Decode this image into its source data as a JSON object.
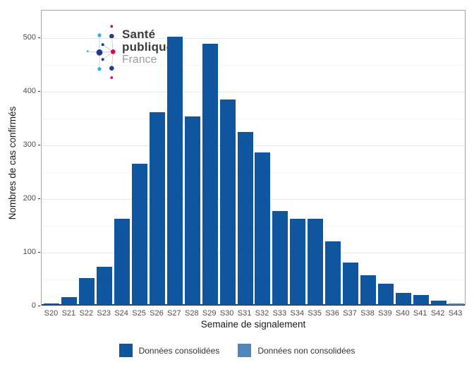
{
  "logo": {
    "line1": "Santé",
    "line2": "publique",
    "line3": "France",
    "colors": {
      "navy": "#1F3D8C",
      "cyan": "#2FB3E8",
      "pink": "#E0004D",
      "link": "#c3cbd8"
    }
  },
  "chart_data": {
    "type": "bar",
    "title": "",
    "xlabel": "Semaine de signalement",
    "ylabel": "Nombres de cas confirmés",
    "categories": [
      "S20",
      "S21",
      "S22",
      "S23",
      "S24",
      "S25",
      "S26",
      "S27",
      "S28",
      "S29",
      "S30",
      "S31",
      "S32",
      "S33",
      "S34",
      "S35",
      "S36",
      "S37",
      "S38",
      "S39",
      "S40",
      "S41",
      "S42",
      "S43"
    ],
    "series": [
      {
        "name": "Données consolidées",
        "color": "#10569F",
        "values": [
          3,
          15,
          50,
          71,
          161,
          264,
          360,
          501,
          352,
          488,
          384,
          323,
          285,
          175,
          161,
          161,
          118,
          79,
          55,
          39,
          22,
          18,
          8,
          0
        ]
      },
      {
        "name": "Données non consolidées",
        "color": "#4E86BB",
        "values": [
          0,
          0,
          0,
          0,
          0,
          0,
          0,
          0,
          0,
          0,
          0,
          0,
          0,
          0,
          0,
          0,
          0,
          0,
          0,
          0,
          0,
          0,
          0,
          3
        ]
      }
    ],
    "ylim": [
      0,
      552
    ],
    "yticks": [
      0,
      100,
      200,
      300,
      400,
      500
    ],
    "yticks_minor": [
      50,
      150,
      250,
      350,
      450
    ],
    "grid": "horizontal major+minor",
    "legend_position": "bottom",
    "panel_border": "#a6a6a6"
  }
}
